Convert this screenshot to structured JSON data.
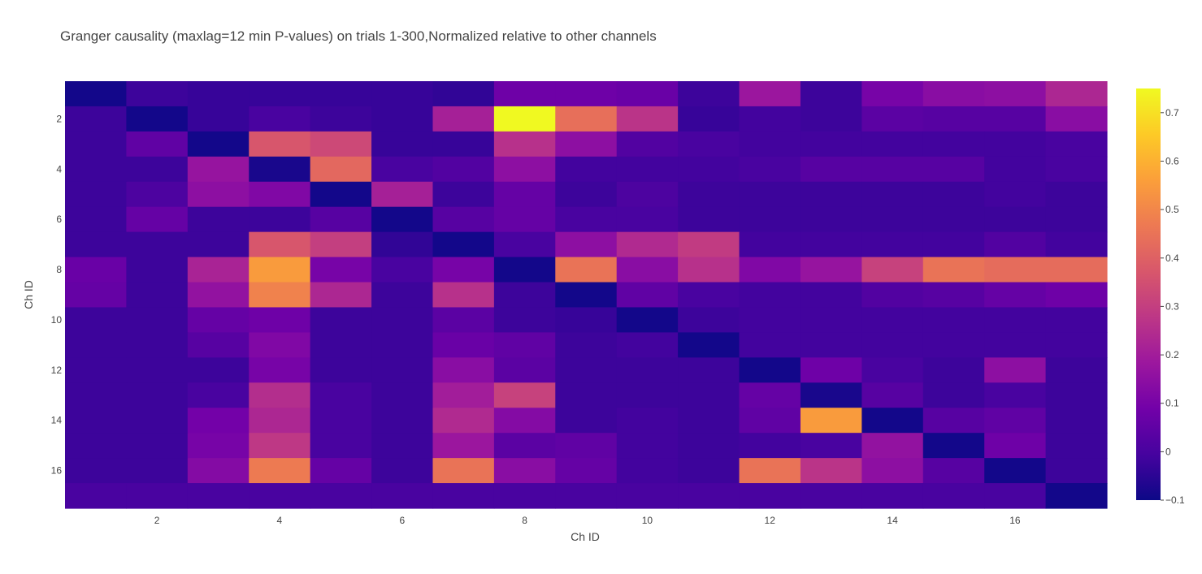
{
  "chart_data": {
    "type": "heatmap",
    "title": "Granger causality (maxlag=12 min P-values) on trials 1-300,Normalized relative to other channels",
    "xlabel": "Ch ID",
    "ylabel": "Ch ID",
    "x": [
      1,
      2,
      3,
      4,
      5,
      6,
      7,
      8,
      9,
      10,
      11,
      12,
      13,
      14,
      15,
      16,
      17
    ],
    "y": [
      1,
      2,
      3,
      4,
      5,
      6,
      7,
      8,
      9,
      10,
      11,
      12,
      13,
      14,
      15,
      16,
      17
    ],
    "x_ticks": [
      2,
      4,
      6,
      8,
      10,
      12,
      14,
      16
    ],
    "y_ticks": [
      2,
      4,
      6,
      8,
      10,
      12,
      14,
      16
    ],
    "y_reversed": true,
    "zmin": -0.1,
    "zmax": 0.75,
    "colorscale": "Plasma",
    "colorbar_ticks": [
      -0.1,
      0,
      0.1,
      0.2,
      0.3,
      0.4,
      0.5,
      0.6,
      0.7
    ],
    "colorbar_tick_labels": [
      "−0.1",
      "0",
      "0.1",
      "0.2",
      "0.3",
      "0.4",
      "0.5",
      "0.6",
      "0.7"
    ],
    "z": [
      [
        -0.09,
        -0.02,
        -0.03,
        -0.03,
        -0.03,
        -0.03,
        -0.04,
        0.08,
        0.08,
        0.07,
        -0.02,
        0.18,
        -0.02,
        0.1,
        0.14,
        0.15,
        0.23
      ],
      [
        -0.02,
        -0.09,
        -0.03,
        0.0,
        -0.02,
        -0.03,
        0.21,
        0.75,
        0.44,
        0.27,
        -0.03,
        -0.01,
        -0.02,
        0.04,
        0.03,
        0.03,
        0.14
      ],
      [
        -0.02,
        0.05,
        -0.09,
        0.37,
        0.33,
        -0.03,
        -0.03,
        0.26,
        0.15,
        0.02,
        0.0,
        -0.01,
        -0.01,
        -0.01,
        -0.01,
        -0.01,
        0.0
      ],
      [
        -0.02,
        -0.02,
        0.17,
        -0.08,
        0.42,
        0.0,
        0.02,
        0.15,
        -0.01,
        -0.01,
        -0.01,
        0.0,
        0.03,
        0.03,
        0.03,
        -0.01,
        0.0
      ],
      [
        -0.02,
        0.01,
        0.15,
        0.12,
        -0.09,
        0.21,
        -0.02,
        0.06,
        -0.02,
        0.01,
        -0.02,
        -0.02,
        -0.02,
        -0.02,
        -0.02,
        -0.01,
        -0.02
      ],
      [
        -0.02,
        0.06,
        -0.02,
        -0.02,
        0.03,
        -0.09,
        0.03,
        0.06,
        0.0,
        0.0,
        -0.02,
        -0.02,
        -0.02,
        -0.02,
        -0.02,
        -0.02,
        -0.02
      ],
      [
        -0.02,
        -0.02,
        -0.02,
        0.37,
        0.3,
        -0.04,
        -0.09,
        0.0,
        0.15,
        0.24,
        0.29,
        -0.01,
        -0.01,
        -0.01,
        -0.01,
        0.02,
        -0.01
      ],
      [
        0.07,
        -0.02,
        0.22,
        0.55,
        0.1,
        0.0,
        0.1,
        -0.09,
        0.45,
        0.14,
        0.26,
        0.12,
        0.17,
        0.31,
        0.45,
        0.43,
        0.43
      ],
      [
        0.06,
        -0.02,
        0.16,
        0.49,
        0.23,
        -0.02,
        0.26,
        -0.02,
        -0.09,
        0.05,
        0.0,
        -0.01,
        -0.01,
        0.02,
        0.03,
        0.06,
        0.08
      ],
      [
        -0.02,
        -0.02,
        0.06,
        0.08,
        -0.02,
        -0.02,
        0.04,
        -0.02,
        -0.03,
        -0.09,
        -0.02,
        -0.01,
        -0.01,
        -0.01,
        -0.01,
        -0.01,
        -0.01
      ],
      [
        -0.02,
        -0.02,
        0.03,
        0.12,
        -0.02,
        -0.02,
        0.07,
        0.05,
        -0.02,
        -0.01,
        -0.09,
        -0.01,
        -0.01,
        -0.01,
        -0.01,
        -0.01,
        -0.01
      ],
      [
        -0.02,
        -0.02,
        -0.02,
        0.1,
        -0.02,
        -0.02,
        0.14,
        0.04,
        -0.02,
        -0.02,
        -0.02,
        -0.09,
        0.08,
        0.0,
        -0.02,
        0.15,
        -0.02
      ],
      [
        -0.02,
        -0.02,
        0.0,
        0.25,
        0.0,
        -0.02,
        0.2,
        0.31,
        -0.02,
        -0.02,
        -0.02,
        0.06,
        -0.08,
        0.03,
        -0.02,
        0.0,
        -0.02
      ],
      [
        -0.02,
        -0.02,
        0.09,
        0.23,
        0.0,
        -0.02,
        0.24,
        0.13,
        -0.02,
        -0.01,
        -0.02,
        0.05,
        0.55,
        -0.09,
        0.03,
        0.05,
        -0.02
      ],
      [
        -0.02,
        -0.02,
        0.1,
        0.28,
        0.0,
        -0.02,
        0.18,
        0.04,
        0.05,
        -0.01,
        -0.02,
        -0.01,
        0.0,
        0.16,
        -0.09,
        0.08,
        -0.02
      ],
      [
        -0.02,
        -0.02,
        0.13,
        0.47,
        0.06,
        -0.02,
        0.45,
        0.14,
        0.06,
        -0.01,
        -0.02,
        0.45,
        0.27,
        0.15,
        0.03,
        -0.09,
        -0.02
      ],
      [
        0.0,
        0.0,
        0.0,
        0.0,
        0.0,
        0.0,
        0.0,
        0.0,
        0.0,
        0.0,
        0.0,
        0.0,
        0.0,
        0.0,
        0.0,
        0.0,
        -0.09
      ]
    ]
  }
}
